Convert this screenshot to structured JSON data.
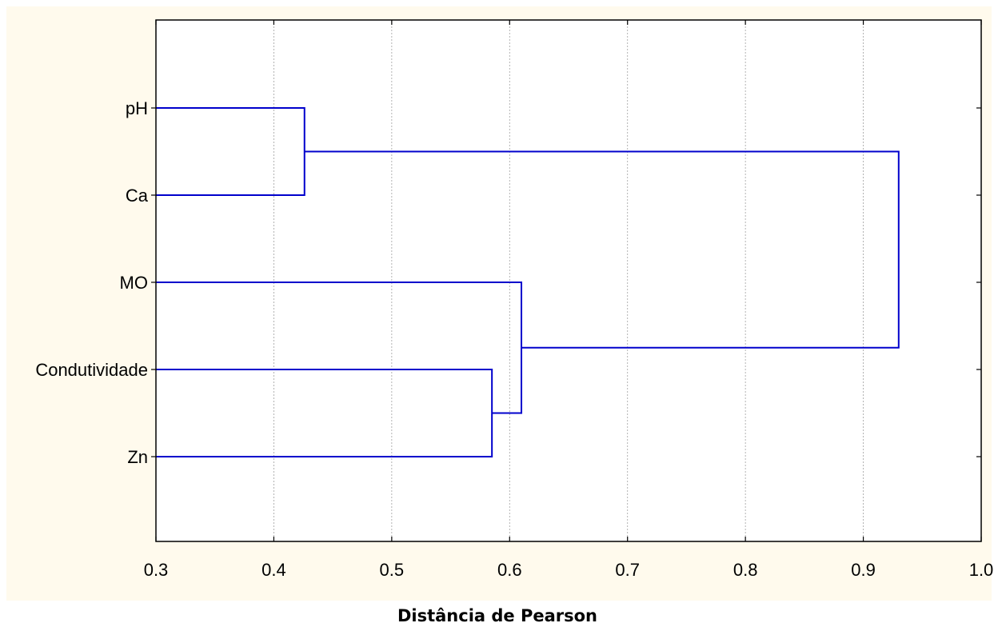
{
  "chart_data": {
    "type": "dendrogram",
    "title": "",
    "xlabel": "Distância de Pearson",
    "ylabel": "",
    "xlim": [
      0.3,
      1.0
    ],
    "xticks": [
      0.3,
      0.4,
      0.5,
      0.6,
      0.7,
      0.8,
      0.9,
      1.0
    ],
    "xtick_labels": [
      "0.3",
      "0.4",
      "0.5",
      "0.6",
      "0.7",
      "0.8",
      "0.9",
      "1.0"
    ],
    "grid": true,
    "leaves": [
      "pH",
      "Ca",
      "MO",
      "Condutividade",
      "Zn"
    ],
    "merges": [
      {
        "left": "pH",
        "right": "Ca",
        "distance": 0.426
      },
      {
        "left": "Condutividade",
        "right": "Zn",
        "distance": 0.585
      },
      {
        "left": "MO",
        "right": "Condutividade+Zn",
        "distance": 0.61
      },
      {
        "left": "pH+Ca",
        "right": "MO+Condutividade+Zn",
        "distance": 0.93
      }
    ],
    "colors": {
      "link": "#0000cc",
      "background": "#fffaed",
      "plot_background": "#ffffff",
      "grid": "#a0a0a0",
      "axis": "#000000"
    }
  }
}
